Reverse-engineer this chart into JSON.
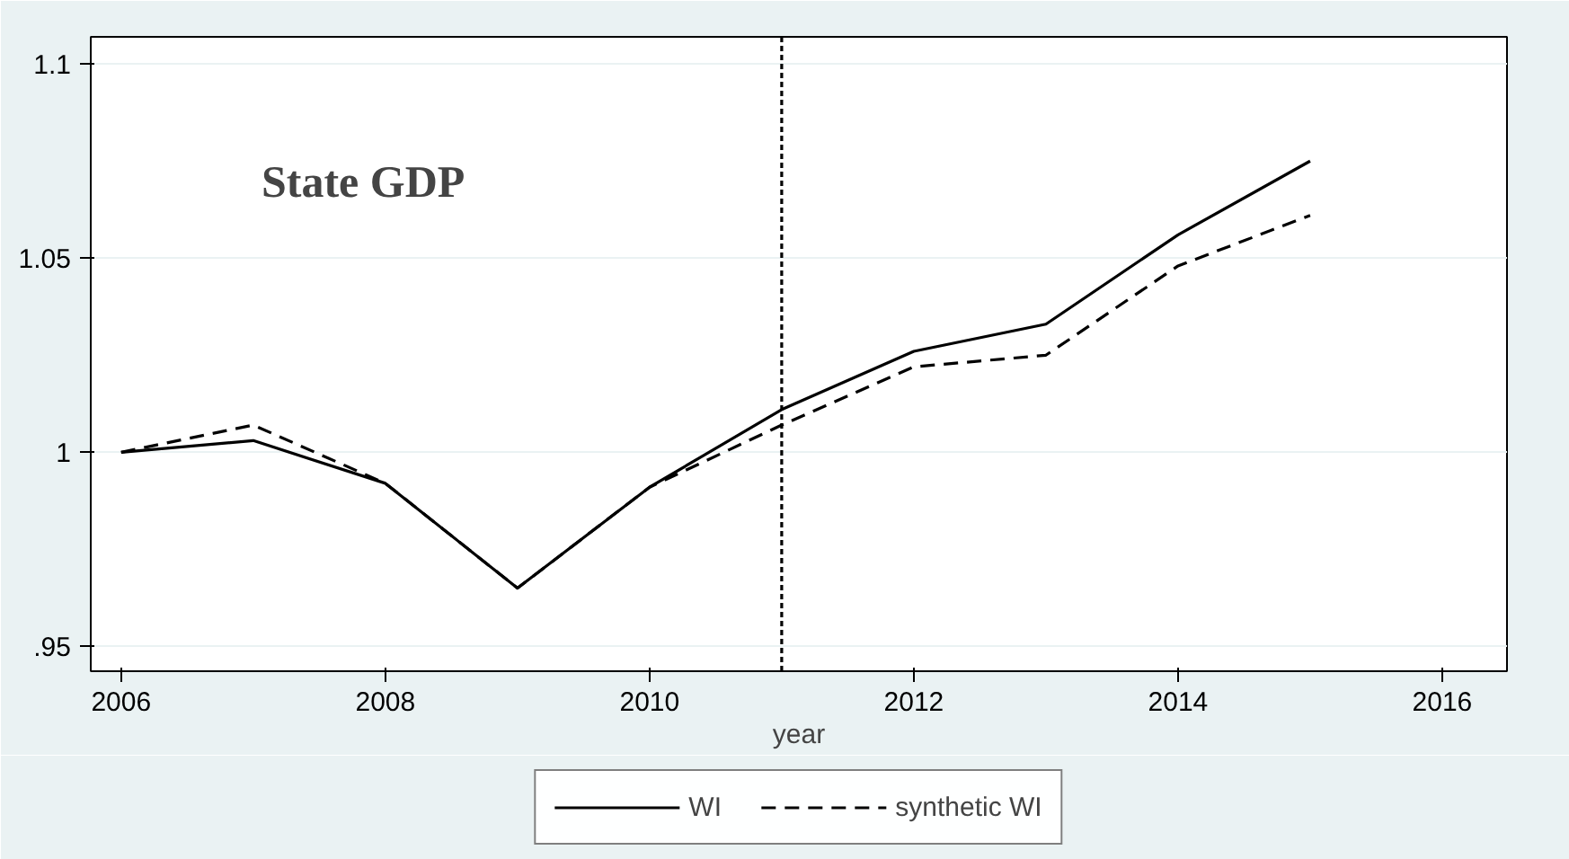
{
  "chart_data": {
    "type": "line",
    "xlabel": "year",
    "annotations": [
      "State GDP"
    ],
    "x": [
      2006,
      2007,
      2008,
      2009,
      2010,
      2011,
      2012,
      2013,
      2014,
      2015
    ],
    "series": [
      {
        "name": "WI",
        "color": "#000000",
        "line_style": "solid",
        "values": [
          1.0,
          1.003,
          0.992,
          0.965,
          0.991,
          1.011,
          1.026,
          1.033,
          1.056,
          1.075
        ]
      },
      {
        "name": "synthetic WI",
        "color": "#000000",
        "line_style": "dashed",
        "values": [
          1.0,
          1.007,
          0.992,
          0.965,
          0.991,
          1.007,
          1.022,
          1.025,
          1.048,
          1.061
        ]
      }
    ],
    "xlim": [
      2005.77,
      2016.49
    ],
    "ylim": [
      0.9436,
      1.107
    ],
    "xticks": [
      2006,
      2008,
      2010,
      2012,
      2014,
      2016
    ],
    "yticks": [
      {
        "value": 0.95,
        "label": ".95"
      },
      1,
      1.05,
      1.1
    ],
    "ref_lines": [
      {
        "axis": "x",
        "value": 2011,
        "line_style": "dashed",
        "color": "#000000"
      }
    ],
    "grid": "y",
    "legend": "bottom",
    "marker": "none"
  }
}
